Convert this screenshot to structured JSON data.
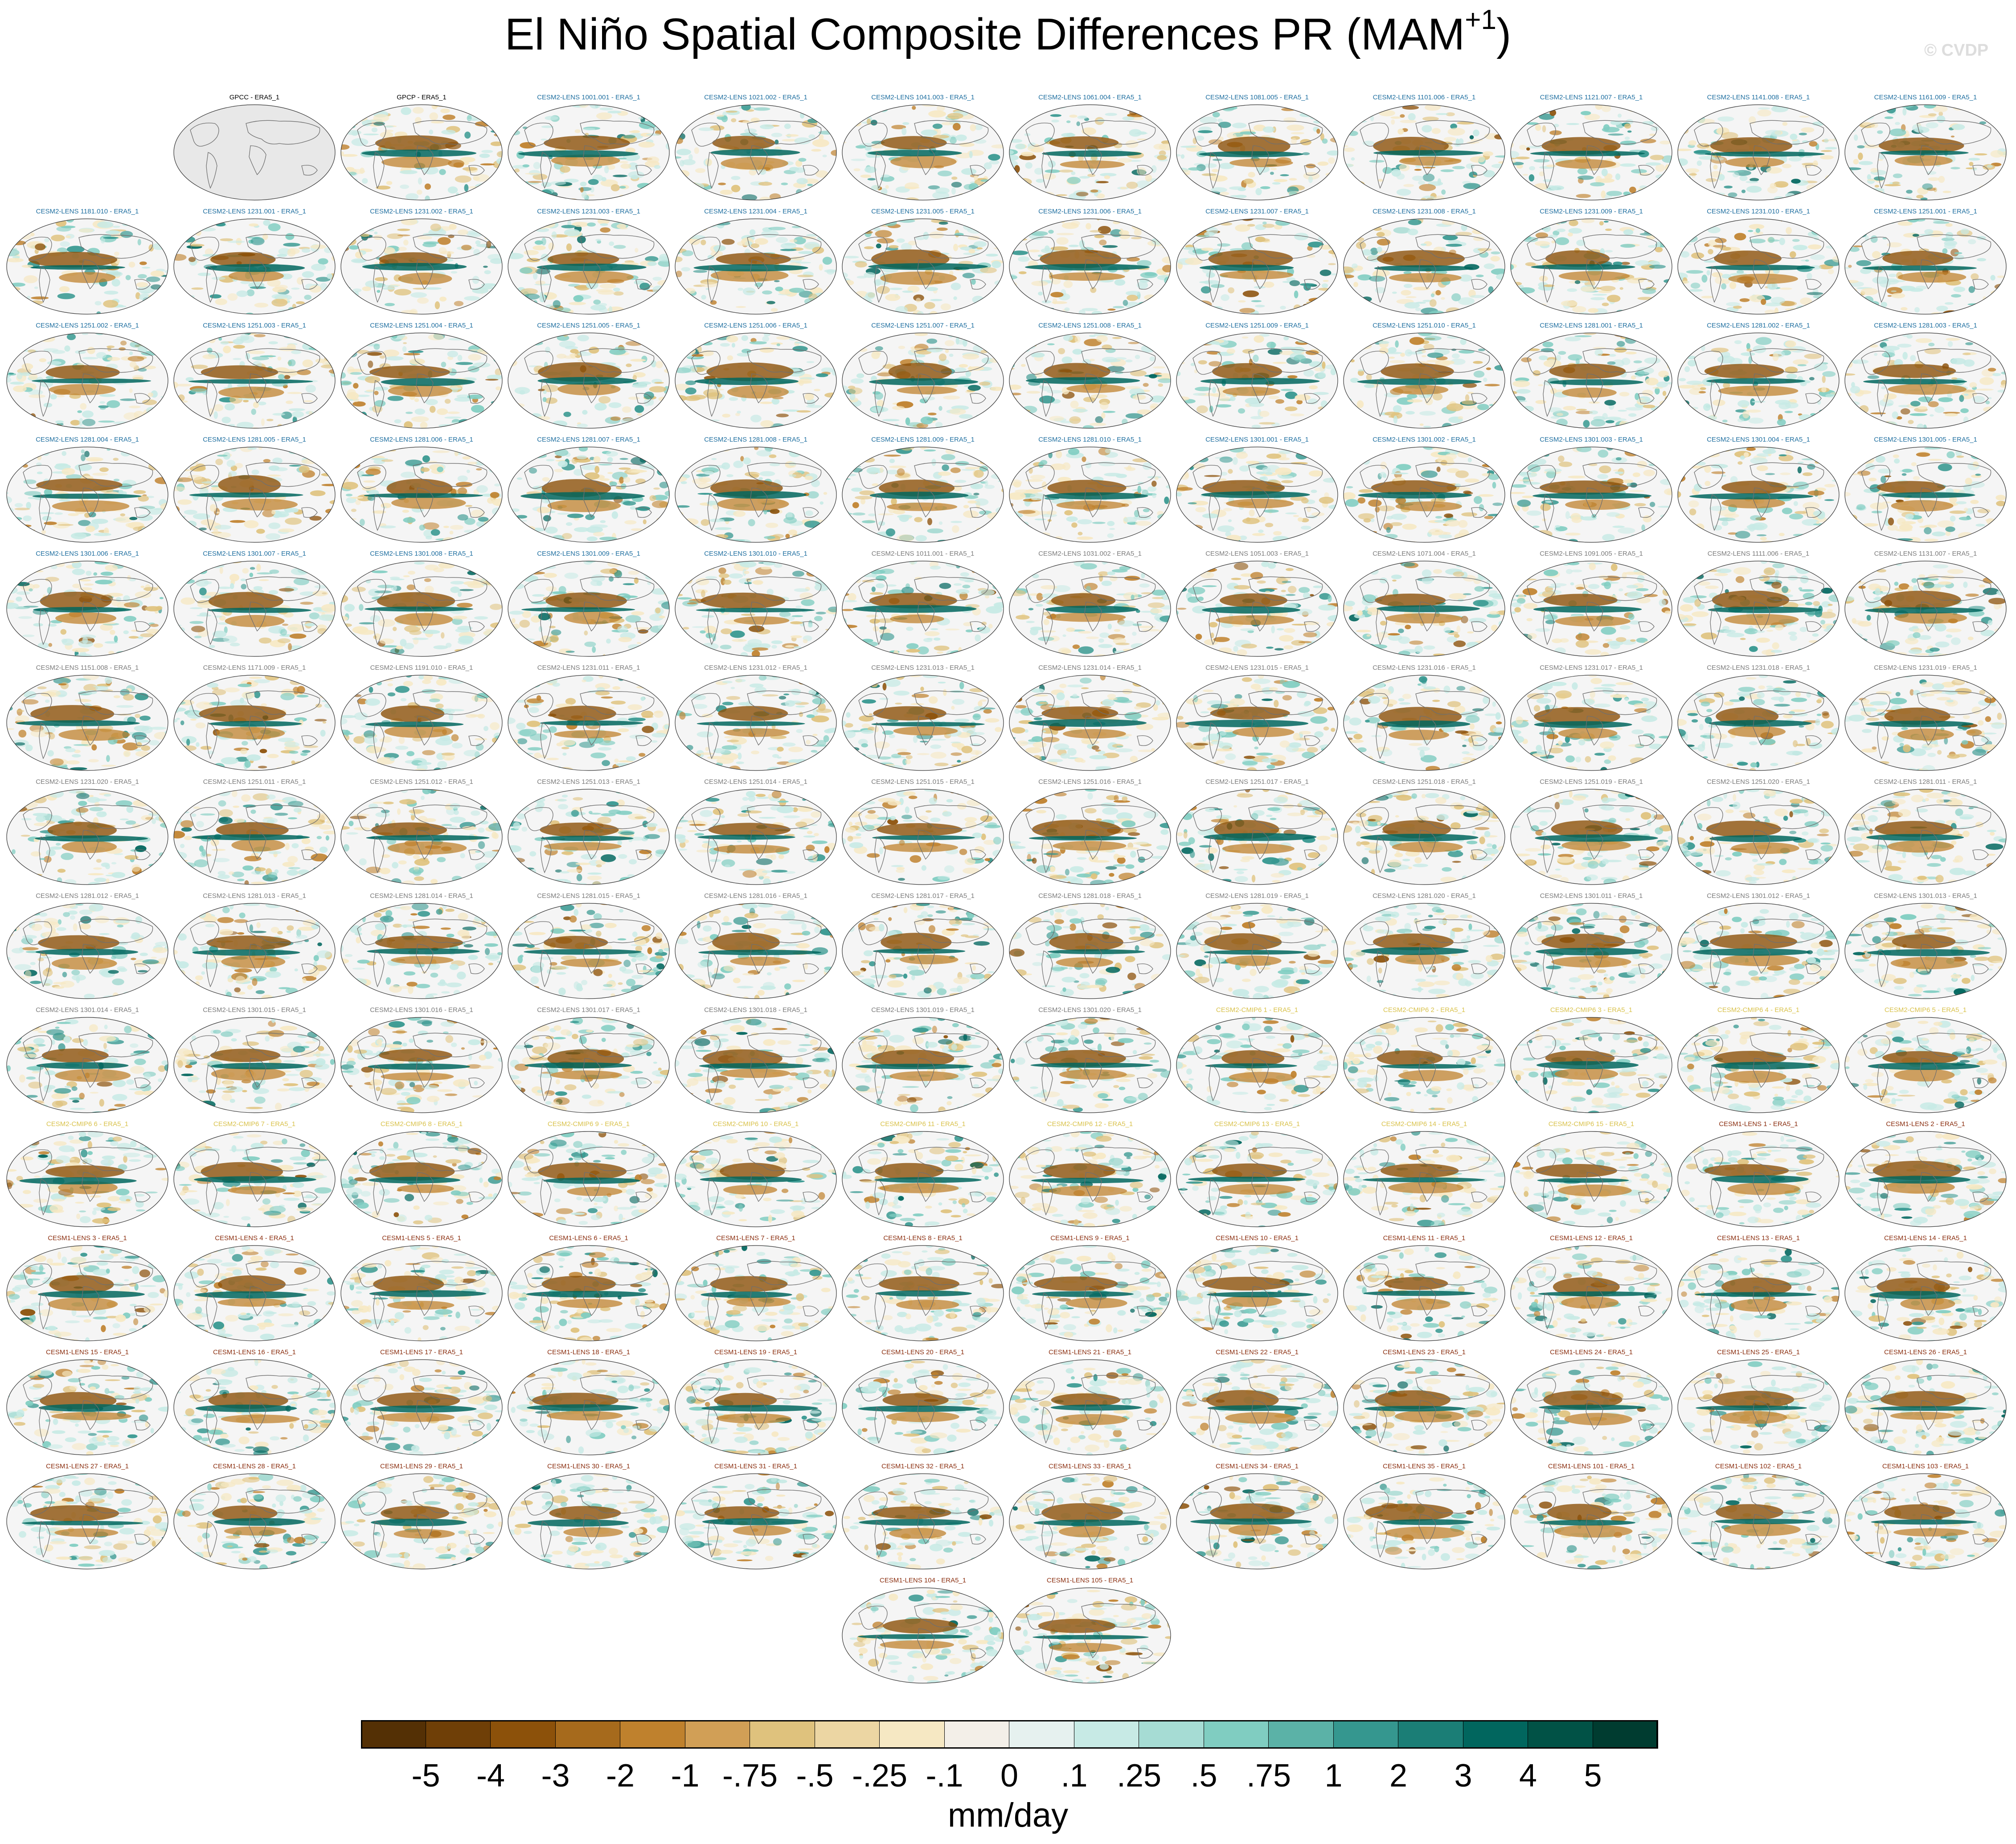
{
  "title_main": "El Niño Spatial Composite Differences PR (MAM",
  "title_sup": "+1",
  "title_close": ")",
  "copyright": "© CVDP",
  "units": "mm/day",
  "colors": {
    "brown": [
      "#543005",
      "#8c510a",
      "#bf812d",
      "#dfc27d",
      "#f6e8c3"
    ],
    "green": [
      "#c7eae5",
      "#80cdc1",
      "#35978f",
      "#01665e",
      "#003c30"
    ],
    "neutral": "#f5f5f5",
    "title_obs": "#000000",
    "title_cesm2_early": "#1f6fa0",
    "title_cesm2_late": "#7c7c7c",
    "title_cmip6": "#d9c24c",
    "title_cesm1": "#8b2f10"
  },
  "chart_data": {
    "type": "heatmap",
    "title": "El Niño Spatial Composite Differences PR (MAM+1)",
    "units": "mm/day",
    "colorbar": {
      "labels": [
        "-5",
        "-4",
        "-3",
        "-2",
        "-1",
        "-.75",
        "-.5",
        "-.25",
        "-.1",
        "0",
        ".1",
        ".25",
        ".5",
        ".75",
        "1",
        "2",
        "3",
        "4",
        "5"
      ],
      "colors": [
        "#543005",
        "#6f3f07",
        "#8c510a",
        "#a66a1c",
        "#bf812d",
        "#d19f56",
        "#dfc27d",
        "#ecd6a3",
        "#f6e8c3",
        "#f3efe8",
        "#e6f1ef",
        "#c7eae5",
        "#a6dcd4",
        "#80cdc1",
        "#5bb2a7",
        "#35978f",
        "#1b7e76",
        "#01665e",
        "#015246",
        "#003c30"
      ]
    },
    "panels": [
      {
        "label": "GPCC - ERA5_1",
        "group": "obs",
        "empty": true
      },
      {
        "label": "GPCP - ERA5_1",
        "group": "obs",
        "empty": false
      },
      {
        "label": "CESM2-LENS 1001.001 - ERA5_1",
        "group": "cesm2a"
      },
      {
        "label": "CESM2-LENS 1021.002 - ERA5_1",
        "group": "cesm2a"
      },
      {
        "label": "CESM2-LENS 1041.003 - ERA5_1",
        "group": "cesm2a"
      },
      {
        "label": "CESM2-LENS 1061.004 - ERA5_1",
        "group": "cesm2a"
      },
      {
        "label": "CESM2-LENS 1081.005 - ERA5_1",
        "group": "cesm2a"
      },
      {
        "label": "CESM2-LENS 1101.006 - ERA5_1",
        "group": "cesm2a"
      },
      {
        "label": "CESM2-LENS 1121.007 - ERA5_1",
        "group": "cesm2a"
      },
      {
        "label": "CESM2-LENS 1141.008 - ERA5_1",
        "group": "cesm2a"
      },
      {
        "label": "CESM2-LENS 1161.009 - ERA5_1",
        "group": "cesm2a"
      },
      {
        "label": "CESM2-LENS 1181.010 - ERA5_1",
        "group": "cesm2a"
      },
      {
        "label": "CESM2-LENS 1231.001 - ERA5_1",
        "group": "cesm2a"
      },
      {
        "label": "CESM2-LENS 1231.002 - ERA5_1",
        "group": "cesm2a"
      },
      {
        "label": "CESM2-LENS 1231.003 - ERA5_1",
        "group": "cesm2a"
      },
      {
        "label": "CESM2-LENS 1231.004 - ERA5_1",
        "group": "cesm2a"
      },
      {
        "label": "CESM2-LENS 1231.005 - ERA5_1",
        "group": "cesm2a"
      },
      {
        "label": "CESM2-LENS 1231.006 - ERA5_1",
        "group": "cesm2a"
      },
      {
        "label": "CESM2-LENS 1231.007 - ERA5_1",
        "group": "cesm2a"
      },
      {
        "label": "CESM2-LENS 1231.008 - ERA5_1",
        "group": "cesm2a"
      },
      {
        "label": "CESM2-LENS 1231.009 - ERA5_1",
        "group": "cesm2a"
      },
      {
        "label": "CESM2-LENS 1231.010 - ERA5_1",
        "group": "cesm2a"
      },
      {
        "label": "CESM2-LENS 1251.001 - ERA5_1",
        "group": "cesm2a"
      },
      {
        "label": "CESM2-LENS 1251.002 - ERA5_1",
        "group": "cesm2a"
      },
      {
        "label": "CESM2-LENS 1251.003 - ERA5_1",
        "group": "cesm2a"
      },
      {
        "label": "CESM2-LENS 1251.004 - ERA5_1",
        "group": "cesm2a"
      },
      {
        "label": "CESM2-LENS 1251.005 - ERA5_1",
        "group": "cesm2a"
      },
      {
        "label": "CESM2-LENS 1251.006 - ERA5_1",
        "group": "cesm2a"
      },
      {
        "label": "CESM2-LENS 1251.007 - ERA5_1",
        "group": "cesm2a"
      },
      {
        "label": "CESM2-LENS 1251.008 - ERA5_1",
        "group": "cesm2a"
      },
      {
        "label": "CESM2-LENS 1251.009 - ERA5_1",
        "group": "cesm2a"
      },
      {
        "label": "CESM2-LENS 1251.010 - ERA5_1",
        "group": "cesm2a"
      },
      {
        "label": "CESM2-LENS 1281.001 - ERA5_1",
        "group": "cesm2a"
      },
      {
        "label": "CESM2-LENS 1281.002 - ERA5_1",
        "group": "cesm2a"
      },
      {
        "label": "CESM2-LENS 1281.003 - ERA5_1",
        "group": "cesm2a"
      },
      {
        "label": "CESM2-LENS 1281.004 - ERA5_1",
        "group": "cesm2a"
      },
      {
        "label": "CESM2-LENS 1281.005 - ERA5_1",
        "group": "cesm2a"
      },
      {
        "label": "CESM2-LENS 1281.006 - ERA5_1",
        "group": "cesm2a"
      },
      {
        "label": "CESM2-LENS 1281.007 - ERA5_1",
        "group": "cesm2a"
      },
      {
        "label": "CESM2-LENS 1281.008 - ERA5_1",
        "group": "cesm2a"
      },
      {
        "label": "CESM2-LENS 1281.009 - ERA5_1",
        "group": "cesm2a"
      },
      {
        "label": "CESM2-LENS 1281.010 - ERA5_1",
        "group": "cesm2a"
      },
      {
        "label": "CESM2-LENS 1301.001 - ERA5_1",
        "group": "cesm2a"
      },
      {
        "label": "CESM2-LENS 1301.002 - ERA5_1",
        "group": "cesm2a"
      },
      {
        "label": "CESM2-LENS 1301.003 - ERA5_1",
        "group": "cesm2a"
      },
      {
        "label": "CESM2-LENS 1301.004 - ERA5_1",
        "group": "cesm2a"
      },
      {
        "label": "CESM2-LENS 1301.005 - ERA5_1",
        "group": "cesm2a"
      },
      {
        "label": "CESM2-LENS 1301.006 - ERA5_1",
        "group": "cesm2a"
      },
      {
        "label": "CESM2-LENS 1301.007 - ERA5_1",
        "group": "cesm2a"
      },
      {
        "label": "CESM2-LENS 1301.008 - ERA5_1",
        "group": "cesm2a"
      },
      {
        "label": "CESM2-LENS 1301.009 - ERA5_1",
        "group": "cesm2a"
      },
      {
        "label": "CESM2-LENS 1301.010 - ERA5_1",
        "group": "cesm2a"
      },
      {
        "label": "CESM2-LENS 1011.001 - ERA5_1",
        "group": "cesm2b"
      },
      {
        "label": "CESM2-LENS 1031.002 - ERA5_1",
        "group": "cesm2b"
      },
      {
        "label": "CESM2-LENS 1051.003 - ERA5_1",
        "group": "cesm2b"
      },
      {
        "label": "CESM2-LENS 1071.004 - ERA5_1",
        "group": "cesm2b"
      },
      {
        "label": "CESM2-LENS 1091.005 - ERA5_1",
        "group": "cesm2b"
      },
      {
        "label": "CESM2-LENS 1111.006 - ERA5_1",
        "group": "cesm2b"
      },
      {
        "label": "CESM2-LENS 1131.007 - ERA5_1",
        "group": "cesm2b"
      },
      {
        "label": "CESM2-LENS 1151.008 - ERA5_1",
        "group": "cesm2b"
      },
      {
        "label": "CESM2-LENS 1171.009 - ERA5_1",
        "group": "cesm2b"
      },
      {
        "label": "CESM2-LENS 1191.010 - ERA5_1",
        "group": "cesm2b"
      },
      {
        "label": "CESM2-LENS 1231.011 - ERA5_1",
        "group": "cesm2b"
      },
      {
        "label": "CESM2-LENS 1231.012 - ERA5_1",
        "group": "cesm2b"
      },
      {
        "label": "CESM2-LENS 1231.013 - ERA5_1",
        "group": "cesm2b"
      },
      {
        "label": "CESM2-LENS 1231.014 - ERA5_1",
        "group": "cesm2b"
      },
      {
        "label": "CESM2-LENS 1231.015 - ERA5_1",
        "group": "cesm2b"
      },
      {
        "label": "CESM2-LENS 1231.016 - ERA5_1",
        "group": "cesm2b"
      },
      {
        "label": "CESM2-LENS 1231.017 - ERA5_1",
        "group": "cesm2b"
      },
      {
        "label": "CESM2-LENS 1231.018 - ERA5_1",
        "group": "cesm2b"
      },
      {
        "label": "CESM2-LENS 1231.019 - ERA5_1",
        "group": "cesm2b"
      },
      {
        "label": "CESM2-LENS 1231.020 - ERA5_1",
        "group": "cesm2b"
      },
      {
        "label": "CESM2-LENS 1251.011 - ERA5_1",
        "group": "cesm2b"
      },
      {
        "label": "CESM2-LENS 1251.012 - ERA5_1",
        "group": "cesm2b"
      },
      {
        "label": "CESM2-LENS 1251.013 - ERA5_1",
        "group": "cesm2b"
      },
      {
        "label": "CESM2-LENS 1251.014 - ERA5_1",
        "group": "cesm2b"
      },
      {
        "label": "CESM2-LENS 1251.015 - ERA5_1",
        "group": "cesm2b"
      },
      {
        "label": "CESM2-LENS 1251.016 - ERA5_1",
        "group": "cesm2b"
      },
      {
        "label": "CESM2-LENS 1251.017 - ERA5_1",
        "group": "cesm2b"
      },
      {
        "label": "CESM2-LENS 1251.018 - ERA5_1",
        "group": "cesm2b"
      },
      {
        "label": "CESM2-LENS 1251.019 - ERA5_1",
        "group": "cesm2b"
      },
      {
        "label": "CESM2-LENS 1251.020 - ERA5_1",
        "group": "cesm2b"
      },
      {
        "label": "CESM2-LENS 1281.011 - ERA5_1",
        "group": "cesm2b"
      },
      {
        "label": "CESM2-LENS 1281.012 - ERA5_1",
        "group": "cesm2b"
      },
      {
        "label": "CESM2-LENS 1281.013 - ERA5_1",
        "group": "cesm2b"
      },
      {
        "label": "CESM2-LENS 1281.014 - ERA5_1",
        "group": "cesm2b"
      },
      {
        "label": "CESM2-LENS 1281.015 - ERA5_1",
        "group": "cesm2b"
      },
      {
        "label": "CESM2-LENS 1281.016 - ERA5_1",
        "group": "cesm2b"
      },
      {
        "label": "CESM2-LENS 1281.017 - ERA5_1",
        "group": "cesm2b"
      },
      {
        "label": "CESM2-LENS 1281.018 - ERA5_1",
        "group": "cesm2b"
      },
      {
        "label": "CESM2-LENS 1281.019 - ERA5_1",
        "group": "cesm2b"
      },
      {
        "label": "CESM2-LENS 1281.020 - ERA5_1",
        "group": "cesm2b"
      },
      {
        "label": "CESM2-LENS 1301.011 - ERA5_1",
        "group": "cesm2b"
      },
      {
        "label": "CESM2-LENS 1301.012 - ERA5_1",
        "group": "cesm2b"
      },
      {
        "label": "CESM2-LENS 1301.013 - ERA5_1",
        "group": "cesm2b"
      },
      {
        "label": "CESM2-LENS 1301.014 - ERA5_1",
        "group": "cesm2b"
      },
      {
        "label": "CESM2-LENS 1301.015 - ERA5_1",
        "group": "cesm2b"
      },
      {
        "label": "CESM2-LENS 1301.016 - ERA5_1",
        "group": "cesm2b"
      },
      {
        "label": "CESM2-LENS 1301.017 - ERA5_1",
        "group": "cesm2b"
      },
      {
        "label": "CESM2-LENS 1301.018 - ERA5_1",
        "group": "cesm2b"
      },
      {
        "label": "CESM2-LENS 1301.019 - ERA5_1",
        "group": "cesm2b"
      },
      {
        "label": "CESM2-LENS 1301.020 - ERA5_1",
        "group": "cesm2b"
      },
      {
        "label": "CESM2-CMIP6 1 - ERA5_1",
        "group": "cmip6"
      },
      {
        "label": "CESM2-CMIP6 2 - ERA5_1",
        "group": "cmip6"
      },
      {
        "label": "CESM2-CMIP6 3 - ERA5_1",
        "group": "cmip6"
      },
      {
        "label": "CESM2-CMIP6 4 - ERA5_1",
        "group": "cmip6"
      },
      {
        "label": "CESM2-CMIP6 5 - ERA5_1",
        "group": "cmip6"
      },
      {
        "label": "CESM2-CMIP6 6 - ERA5_1",
        "group": "cmip6"
      },
      {
        "label": "CESM2-CMIP6 7 - ERA5_1",
        "group": "cmip6"
      },
      {
        "label": "CESM2-CMIP6 8 - ERA5_1",
        "group": "cmip6"
      },
      {
        "label": "CESM2-CMIP6 9 - ERA5_1",
        "group": "cmip6"
      },
      {
        "label": "CESM2-CMIP6 10 - ERA5_1",
        "group": "cmip6"
      },
      {
        "label": "CESM2-CMIP6 11 - ERA5_1",
        "group": "cmip6"
      },
      {
        "label": "CESM2-CMIP6 12 - ERA5_1",
        "group": "cmip6"
      },
      {
        "label": "CESM2-CMIP6 13 - ERA5_1",
        "group": "cmip6"
      },
      {
        "label": "CESM2-CMIP6 14 - ERA5_1",
        "group": "cmip6"
      },
      {
        "label": "CESM2-CMIP6 15 - ERA5_1",
        "group": "cmip6"
      },
      {
        "label": "CESM1-LENS 1 - ERA5_1",
        "group": "cesm1"
      },
      {
        "label": "CESM1-LENS 2 - ERA5_1",
        "group": "cesm1"
      },
      {
        "label": "CESM1-LENS 3 - ERA5_1",
        "group": "cesm1"
      },
      {
        "label": "CESM1-LENS 4 - ERA5_1",
        "group": "cesm1"
      },
      {
        "label": "CESM1-LENS 5 - ERA5_1",
        "group": "cesm1"
      },
      {
        "label": "CESM1-LENS 6 - ERA5_1",
        "group": "cesm1"
      },
      {
        "label": "CESM1-LENS 7 - ERA5_1",
        "group": "cesm1"
      },
      {
        "label": "CESM1-LENS 8 - ERA5_1",
        "group": "cesm1"
      },
      {
        "label": "CESM1-LENS 9 - ERA5_1",
        "group": "cesm1"
      },
      {
        "label": "CESM1-LENS 10 - ERA5_1",
        "group": "cesm1"
      },
      {
        "label": "CESM1-LENS 11 - ERA5_1",
        "group": "cesm1"
      },
      {
        "label": "CESM1-LENS 12 - ERA5_1",
        "group": "cesm1"
      },
      {
        "label": "CESM1-LENS 13 - ERA5_1",
        "group": "cesm1"
      },
      {
        "label": "CESM1-LENS 14 - ERA5_1",
        "group": "cesm1"
      },
      {
        "label": "CESM1-LENS 15 - ERA5_1",
        "group": "cesm1"
      },
      {
        "label": "CESM1-LENS 16 - ERA5_1",
        "group": "cesm1"
      },
      {
        "label": "CESM1-LENS 17 - ERA5_1",
        "group": "cesm1"
      },
      {
        "label": "CESM1-LENS 18 - ERA5_1",
        "group": "cesm1"
      },
      {
        "label": "CESM1-LENS 19 - ERA5_1",
        "group": "cesm1"
      },
      {
        "label": "CESM1-LENS 20 - ERA5_1",
        "group": "cesm1"
      },
      {
        "label": "CESM1-LENS 21 - ERA5_1",
        "group": "cesm1"
      },
      {
        "label": "CESM1-LENS 22 - ERA5_1",
        "group": "cesm1"
      },
      {
        "label": "CESM1-LENS 23 - ERA5_1",
        "group": "cesm1"
      },
      {
        "label": "CESM1-LENS 24 - ERA5_1",
        "group": "cesm1"
      },
      {
        "label": "CESM1-LENS 25 - ERA5_1",
        "group": "cesm1"
      },
      {
        "label": "CESM1-LENS 26 - ERA5_1",
        "group": "cesm1"
      },
      {
        "label": "CESM1-LENS 27 - ERA5_1",
        "group": "cesm1"
      },
      {
        "label": "CESM1-LENS 28 - ERA5_1",
        "group": "cesm1"
      },
      {
        "label": "CESM1-LENS 29 - ERA5_1",
        "group": "cesm1"
      },
      {
        "label": "CESM1-LENS 30 - ERA5_1",
        "group": "cesm1"
      },
      {
        "label": "CESM1-LENS 31 - ERA5_1",
        "group": "cesm1"
      },
      {
        "label": "CESM1-LENS 32 - ERA5_1",
        "group": "cesm1"
      },
      {
        "label": "CESM1-LENS 33 - ERA5_1",
        "group": "cesm1"
      },
      {
        "label": "CESM1-LENS 34 - ERA5_1",
        "group": "cesm1"
      },
      {
        "label": "CESM1-LENS 35 - ERA5_1",
        "group": "cesm1"
      },
      {
        "label": "CESM1-LENS 101 - ERA5_1",
        "group": "cesm1"
      },
      {
        "label": "CESM1-LENS 102 - ERA5_1",
        "group": "cesm1"
      },
      {
        "label": "CESM1-LENS 103 - ERA5_1",
        "group": "cesm1"
      },
      {
        "label": "CESM1-LENS 104 - ERA5_1",
        "group": "cesm1"
      },
      {
        "label": "CESM1-LENS 105 - ERA5_1",
        "group": "cesm1"
      }
    ]
  }
}
